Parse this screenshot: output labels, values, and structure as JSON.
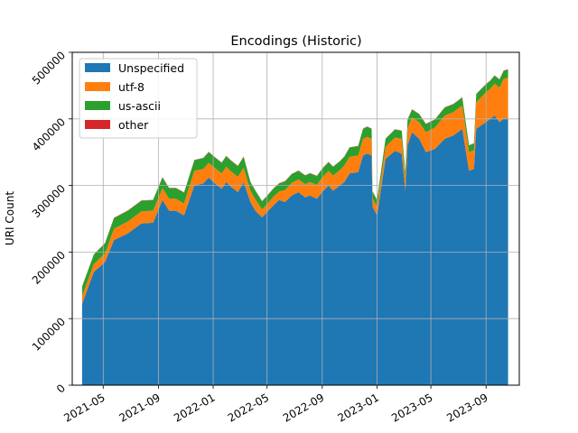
{
  "chart_data": {
    "type": "area",
    "stacked": true,
    "title": "Encodings (Historic)",
    "xlabel": "",
    "ylabel": "URI Count",
    "grid": true,
    "legend_position": "top-left",
    "x_ticks": [
      "2021-05",
      "2021-09",
      "2022-01",
      "2022-05",
      "2022-09",
      "2023-01",
      "2023-05",
      "2023-09"
    ],
    "y_ticks": [
      "0",
      "100000",
      "200000",
      "300000",
      "400000",
      "500000"
    ],
    "ylim": [
      0,
      500000
    ],
    "xlim": [
      "2021-02-21",
      "2023-11-14"
    ],
    "x": [
      "2021-03-15",
      "2021-04-10",
      "2021-05-05",
      "2021-05-25",
      "2021-06-25",
      "2021-07-25",
      "2021-08-20",
      "2021-09-10",
      "2021-09-25",
      "2021-10-10",
      "2021-10-28",
      "2021-11-20",
      "2021-12-10",
      "2021-12-22",
      "2022-01-05",
      "2022-01-20",
      "2022-01-30",
      "2022-02-10",
      "2022-02-25",
      "2022-03-10",
      "2022-03-25",
      "2022-04-05",
      "2022-04-20",
      "2022-05-01",
      "2022-05-15",
      "2022-05-28",
      "2022-06-10",
      "2022-06-25",
      "2022-07-10",
      "2022-07-25",
      "2022-08-05",
      "2022-08-20",
      "2022-09-01",
      "2022-09-15",
      "2022-09-25",
      "2022-10-10",
      "2022-10-20",
      "2022-11-01",
      "2022-11-20",
      "2022-12-01",
      "2022-12-10",
      "2022-12-20",
      "2022-12-22",
      "2023-01-01",
      "2023-01-20",
      "2023-02-10",
      "2023-02-25",
      "2023-03-05",
      "2023-03-10",
      "2023-03-20",
      "2023-04-05",
      "2023-04-20",
      "2023-05-10",
      "2023-06-01",
      "2023-06-20",
      "2023-07-10",
      "2023-07-25",
      "2023-08-05",
      "2023-08-10",
      "2023-08-20",
      "2023-09-01",
      "2023-09-10",
      "2023-09-20",
      "2023-10-01",
      "2023-10-10",
      "2023-10-20"
    ],
    "series": [
      {
        "name": "Unspecified",
        "color": "#1f77b4",
        "values": [
          122000,
          170000,
          185000,
          218000,
          228000,
          243000,
          244000,
          278000,
          262000,
          262000,
          255000,
          300000,
          303000,
          312000,
          303000,
          295000,
          305000,
          298000,
          290000,
          305000,
          275000,
          262000,
          252000,
          260000,
          270000,
          278000,
          275000,
          285000,
          290000,
          282000,
          285000,
          280000,
          290000,
          300000,
          292000,
          300000,
          305000,
          318000,
          320000,
          345000,
          348000,
          345000,
          268000,
          255000,
          340000,
          352000,
          348000,
          292000,
          360000,
          380000,
          370000,
          350000,
          355000,
          370000,
          375000,
          385000,
          322000,
          325000,
          385000,
          390000,
          395000,
          400000,
          405000,
          395000,
          400000,
          400000
        ]
      },
      {
        "name": "utf-8",
        "color": "#ff7f0e",
        "values": [
          12000,
          12000,
          13000,
          17000,
          18000,
          18000,
          18000,
          18000,
          18000,
          18000,
          18000,
          22000,
          22000,
          22000,
          23000,
          23000,
          23000,
          23000,
          23000,
          22000,
          17000,
          17000,
          12000,
          12000,
          13000,
          13000,
          18000,
          19000,
          19000,
          20000,
          20000,
          21000,
          22000,
          22000,
          23000,
          23000,
          25000,
          25000,
          25000,
          25000,
          25000,
          25000,
          13000,
          13000,
          18000,
          20000,
          22000,
          18000,
          26000,
          22000,
          25000,
          30000,
          32000,
          35000,
          35000,
          35000,
          28000,
          28000,
          40000,
          42000,
          45000,
          45000,
          48000,
          52000,
          60000,
          62000
        ]
      },
      {
        "name": "us-ascii",
        "color": "#2ca02c",
        "values": [
          14000,
          14000,
          15000,
          16000,
          16000,
          16000,
          16000,
          16000,
          16000,
          16000,
          16000,
          16000,
          16000,
          16000,
          16000,
          16000,
          16000,
          16000,
          16000,
          16000,
          13000,
          13000,
          12000,
          12000,
          12000,
          12000,
          13000,
          13000,
          13000,
          13000,
          13000,
          13000,
          13000,
          13000,
          13000,
          13000,
          13000,
          14000,
          14000,
          15000,
          15000,
          15000,
          10000,
          10000,
          12000,
          12000,
          12000,
          10000,
          13000,
          12000,
          12000,
          12000,
          12000,
          12000,
          12000,
          12000,
          10000,
          10000,
          12000,
          12000,
          12000,
          12000,
          12000,
          12000,
          12000,
          12000
        ]
      },
      {
        "name": "other",
        "color": "#d62728",
        "values": [
          500,
          500,
          500,
          500,
          500,
          500,
          500,
          500,
          500,
          500,
          500,
          500,
          500,
          500,
          500,
          500,
          500,
          500,
          500,
          500,
          500,
          500,
          500,
          500,
          500,
          500,
          500,
          500,
          500,
          500,
          500,
          500,
          500,
          500,
          500,
          500,
          500,
          500,
          500,
          500,
          500,
          500,
          500,
          500,
          500,
          500,
          500,
          500,
          500,
          500,
          500,
          500,
          500,
          500,
          500,
          500,
          500,
          500,
          500,
          500,
          500,
          500,
          500,
          500,
          500,
          500
        ]
      }
    ]
  }
}
